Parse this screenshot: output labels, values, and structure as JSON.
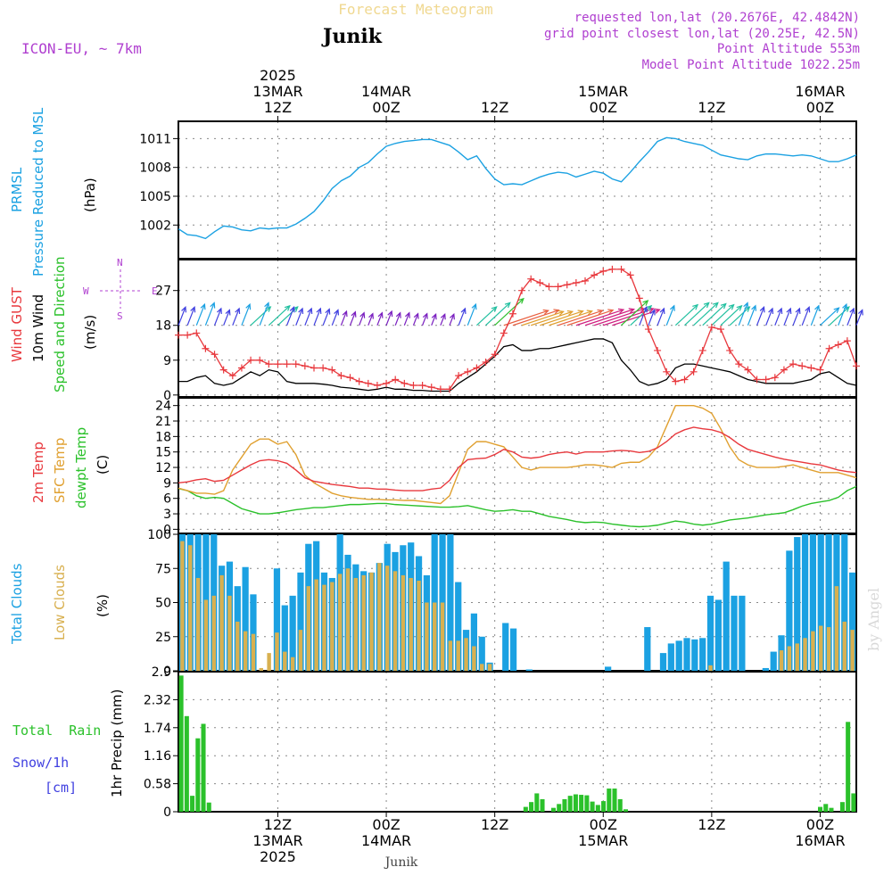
{
  "header": {
    "title": "Forecast Meteogram",
    "location": "Junik",
    "model": "ICON-EU, ~ 7km",
    "requested": "requested lon,lat (20.2676E, 42.4842N)",
    "gridpoint": "grid point closest lon,lat (20.25E, 42.5N)",
    "point_altitude": "Point Altitude 553m",
    "model_altitude": "Model Point Altitude 1022.25m",
    "footer_location": "Junik",
    "credit": "by Angel"
  },
  "colors": {
    "pressure": "#1ba1e2",
    "gust": "#e8383d",
    "wind": "#000000",
    "t2m": "#e8383d",
    "sfc": "#e0a030",
    "dewpt": "#2bc12b",
    "total_clouds": "#1ba1e2",
    "low_clouds": "#d8b050",
    "rain": "#2bc12b",
    "snow": "#4040e0",
    "purple": "#b040d0"
  },
  "time_axis": {
    "start_hour": 0,
    "end_hour": 75,
    "top_labels": [
      {
        "h": 11,
        "lines": [
          "2025",
          "13MAR",
          "12Z"
        ]
      },
      {
        "h": 23,
        "lines": [
          "14MAR",
          "00Z"
        ]
      },
      {
        "h": 35,
        "lines": [
          "12Z"
        ]
      },
      {
        "h": 47,
        "lines": [
          "15MAR",
          "00Z"
        ]
      },
      {
        "h": 59,
        "lines": [
          "12Z"
        ]
      },
      {
        "h": 71,
        "lines": [
          "16MAR",
          "00Z"
        ]
      }
    ],
    "bottom_labels": [
      {
        "h": 11,
        "lines": [
          "12Z",
          "13MAR",
          "2025"
        ]
      },
      {
        "h": 23,
        "lines": [
          "00Z",
          "14MAR"
        ]
      },
      {
        "h": 35,
        "lines": [
          "12Z"
        ]
      },
      {
        "h": 47,
        "lines": [
          "00Z",
          "15MAR"
        ]
      },
      {
        "h": 59,
        "lines": [
          "12Z"
        ]
      },
      {
        "h": 71,
        "lines": [
          "00Z",
          "16MAR"
        ]
      }
    ]
  },
  "chart_data": [
    {
      "type": "line",
      "title": "PRMSL Pressure Reduced to MSL",
      "ylabel": "(hPa)",
      "axis_title_lines": [
        "PRMSL",
        "Pressure Reduced to MSL"
      ],
      "ylim": [
        998.5,
        1012.8
      ],
      "yticks": [
        1002,
        1005,
        1008,
        1011
      ],
      "series": [
        {
          "name": "PRMSL",
          "values": [
            1001.6,
            1001.0,
            1000.9,
            1000.6,
            1001.3,
            1001.9,
            1001.8,
            1001.5,
            1001.4,
            1001.7,
            1001.6,
            1001.7,
            1001.7,
            1002.1,
            1002.7,
            1003.4,
            1004.5,
            1005.8,
            1006.6,
            1007.1,
            1008.0,
            1008.5,
            1009.4,
            1010.2,
            1010.5,
            1010.7,
            1010.8,
            1010.9,
            1010.9,
            1010.6,
            1010.3,
            1009.6,
            1008.8,
            1009.2,
            1007.9,
            1006.8,
            1006.2,
            1006.3,
            1006.2,
            1006.6,
            1007.0,
            1007.3,
            1007.5,
            1007.4,
            1007.0,
            1007.3,
            1007.6,
            1007.4,
            1006.8,
            1006.5,
            1007.5,
            1008.6,
            1009.6,
            1010.7,
            1011.1,
            1011.0,
            1010.7,
            1010.5,
            1010.3,
            1009.8,
            1009.3,
            1009.1,
            1008.9,
            1008.8,
            1009.2,
            1009.4,
            1009.4,
            1009.3,
            1009.2,
            1009.3,
            1009.2,
            1008.9,
            1008.6,
            1008.6,
            1008.9,
            1009.3
          ]
        }
      ]
    },
    {
      "type": "line",
      "title": "Wind GUST / 10m Wind Speed and Direction",
      "ylabel": "(m/s)",
      "axis_title_lines": [
        "Wind GUST",
        "10m Wind",
        "Speed and Direction"
      ],
      "compass": {
        "n": "N",
        "s": "S",
        "w": "W",
        "e": "E"
      },
      "ylim": [
        -0.5,
        35
      ],
      "yticks": [
        0,
        9,
        18,
        27
      ],
      "series": [
        {
          "name": "Wind GUST",
          "values": [
            15.5,
            15.5,
            16.0,
            12.0,
            10.5,
            6.5,
            5.0,
            7.0,
            9.0,
            9.0,
            8.0,
            8.0,
            8.0,
            8.0,
            7.5,
            7.0,
            7.0,
            6.5,
            5.0,
            4.5,
            3.5,
            3.0,
            2.5,
            3.0,
            4.0,
            3.0,
            2.5,
            2.5,
            2.0,
            1.5,
            1.5,
            5.0,
            6.0,
            7.0,
            8.5,
            10.5,
            16.0,
            21.0,
            27.0,
            30.0,
            29.0,
            28.0,
            28.0,
            28.5,
            29.0,
            29.5,
            31.0,
            32.0,
            32.5,
            32.5,
            31.0,
            25.0,
            17.0,
            11.5,
            6.0,
            3.5,
            4.0,
            6.0,
            11.5,
            17.5,
            17.0,
            11.5,
            8.0,
            6.5,
            4.0,
            4.0,
            4.5,
            6.5,
            8.0,
            7.5,
            7.0,
            6.5,
            12.0,
            13.0,
            14.0,
            7.5
          ]
        },
        {
          "name": "10m Wind",
          "values": [
            3.5,
            3.5,
            4.5,
            5.0,
            3.0,
            2.5,
            3.0,
            4.5,
            6.0,
            5.0,
            6.5,
            6.0,
            3.5,
            3.0,
            3.0,
            3.0,
            2.8,
            2.5,
            2.0,
            1.8,
            1.5,
            1.2,
            1.5,
            2.0,
            1.5,
            1.5,
            1.2,
            1.2,
            1.0,
            1.0,
            1.0,
            3.0,
            4.5,
            6.0,
            8.0,
            10.0,
            12.5,
            13.0,
            11.5,
            11.5,
            12.0,
            12.0,
            12.5,
            13.0,
            13.5,
            14.0,
            14.5,
            14.5,
            13.5,
            9.0,
            6.5,
            3.5,
            2.5,
            3.0,
            4.0,
            7.0,
            8.0,
            8.0,
            7.5,
            7.0,
            6.5,
            6.0,
            5.0,
            4.0,
            3.5,
            3.0,
            3.0,
            3.0,
            3.0,
            3.5,
            4.0,
            5.5,
            6.0,
            4.5,
            3.0,
            2.5
          ]
        }
      ],
      "wind_barbs_note": "arrows along y=18, colored by speed"
    },
    {
      "type": "line",
      "title": "2m Temp / SFC Temp / dewpt Temp",
      "ylabel": "(C)",
      "axis_title_lines": [
        "2m Temp",
        "SFC Temp",
        "dewpt Temp"
      ],
      "ylim": [
        -0.8,
        25.5
      ],
      "yticks": [
        0,
        3,
        6,
        9,
        12,
        15,
        18,
        21,
        24
      ],
      "series": [
        {
          "name": "2m Temp",
          "values": [
            9.0,
            9.2,
            9.6,
            9.8,
            9.3,
            9.5,
            10.5,
            11.5,
            12.5,
            13.3,
            13.5,
            13.3,
            12.8,
            11.5,
            10.0,
            9.3,
            9.0,
            8.7,
            8.5,
            8.3,
            8.0,
            8.0,
            7.8,
            7.8,
            7.6,
            7.5,
            7.5,
            7.5,
            7.8,
            8.0,
            9.5,
            12.0,
            13.5,
            13.7,
            13.8,
            14.5,
            15.5,
            15.0,
            14.0,
            13.8,
            14.0,
            14.5,
            14.8,
            15.0,
            14.6,
            15.0,
            15.0,
            15.0,
            15.2,
            15.3,
            15.2,
            14.9,
            15.1,
            15.8,
            17.0,
            18.5,
            19.3,
            19.8,
            19.5,
            19.3,
            18.8,
            17.8,
            16.5,
            15.5,
            15.0,
            14.5,
            14.0,
            13.6,
            13.3,
            13.0,
            12.7,
            12.5,
            12.0,
            11.5,
            11.2,
            11.0
          ]
        },
        {
          "name": "SFC Temp",
          "values": [
            8.0,
            7.5,
            7.0,
            7.0,
            6.8,
            7.5,
            11.5,
            14.0,
            16.5,
            17.5,
            17.5,
            16.5,
            17.0,
            14.5,
            10.5,
            9.0,
            8.0,
            7.0,
            6.5,
            6.2,
            6.0,
            5.8,
            5.8,
            5.7,
            5.7,
            5.6,
            5.6,
            5.4,
            5.2,
            5.0,
            6.5,
            11.0,
            15.5,
            17.0,
            17.0,
            16.5,
            16.0,
            14.0,
            12.0,
            11.5,
            12.0,
            12.0,
            12.0,
            12.0,
            12.2,
            12.5,
            12.5,
            12.3,
            12.0,
            12.8,
            13.0,
            13.0,
            14.0,
            16.0,
            20.0,
            24.0,
            24.0,
            24.0,
            23.5,
            22.5,
            19.5,
            16.0,
            13.5,
            12.5,
            12.0,
            12.0,
            12.0,
            12.2,
            12.5,
            12.0,
            11.5,
            11.0,
            11.0,
            11.0,
            10.5,
            10.0
          ]
        },
        {
          "name": "dewpt Temp",
          "values": [
            7.9,
            7.5,
            6.5,
            6.0,
            6.2,
            6.0,
            5.0,
            4.0,
            3.5,
            3.0,
            3.0,
            3.2,
            3.5,
            3.8,
            4.0,
            4.2,
            4.2,
            4.4,
            4.6,
            4.8,
            4.8,
            4.9,
            5.0,
            5.0,
            4.8,
            4.7,
            4.6,
            4.5,
            4.4,
            4.3,
            4.3,
            4.4,
            4.6,
            4.2,
            3.8,
            3.5,
            3.6,
            3.8,
            3.5,
            3.5,
            3.0,
            2.5,
            2.2,
            1.9,
            1.5,
            1.3,
            1.4,
            1.3,
            1.0,
            0.8,
            0.6,
            0.5,
            0.6,
            0.8,
            1.2,
            1.6,
            1.4,
            1.0,
            0.8,
            1.0,
            1.4,
            1.8,
            2.0,
            2.2,
            2.5,
            2.8,
            3.0,
            3.2,
            3.8,
            4.5,
            5.0,
            5.3,
            5.6,
            6.2,
            7.5,
            8.3
          ]
        }
      ]
    },
    {
      "type": "bar",
      "title": "Total Clouds / Low Clouds",
      "ylabel": "(%)",
      "axis_title_lines": [
        "Total Clouds",
        "Low Clouds"
      ],
      "ylim": [
        0,
        100
      ],
      "yticks": [
        0,
        25,
        50,
        75,
        100
      ],
      "series": [
        {
          "name": "Total Clouds",
          "values": [
            100,
            100,
            100,
            100,
            100,
            77,
            80,
            62,
            76,
            56,
            0,
            0,
            75,
            48,
            55,
            72,
            93,
            95,
            72,
            68,
            100,
            85,
            78,
            73,
            72,
            79,
            93,
            87,
            92,
            94,
            84,
            70,
            100,
            100,
            100,
            65,
            30,
            42,
            25,
            6,
            0,
            35,
            31,
            0,
            1,
            0,
            0,
            0,
            0,
            0,
            0,
            0,
            0,
            0,
            3,
            0,
            0,
            0,
            0,
            32,
            0,
            13,
            20,
            22,
            24,
            23,
            24,
            55,
            52,
            80,
            55,
            55,
            0,
            0,
            2,
            14,
            26,
            88,
            98,
            100,
            100,
            100,
            100,
            100,
            100,
            72
          ]
        },
        {
          "name": "Low Clouds",
          "values": [
            95,
            92,
            68,
            52,
            55,
            70,
            55,
            36,
            29,
            27,
            2,
            13,
            28,
            14,
            10,
            30,
            62,
            67,
            63,
            65,
            71,
            75,
            68,
            70,
            72,
            79,
            77,
            73,
            70,
            68,
            66,
            50,
            50,
            50,
            22,
            22,
            24,
            18,
            5,
            5,
            0,
            0,
            0,
            0,
            0,
            0,
            0,
            0,
            0,
            0,
            0,
            0,
            0,
            0,
            0,
            0,
            0,
            0,
            0,
            0,
            0,
            0,
            0,
            0,
            0,
            0,
            0,
            4,
            0,
            0,
            0,
            0,
            0,
            0,
            0,
            0,
            15,
            18,
            20,
            24,
            29,
            33,
            32,
            62,
            36,
            30
          ]
        }
      ]
    },
    {
      "type": "bar",
      "title": "Total Rain / Snow/1h",
      "ylabel": "1hr Precip (mm)",
      "legend_lines": [
        "Total  Rain",
        "Snow/1h",
        "[cm]"
      ],
      "ylim": [
        0,
        2.9
      ],
      "yticks": [
        0,
        0.58,
        1.16,
        1.74,
        2.32,
        2.9
      ],
      "ytick_labels": [
        "0",
        "0.58",
        "1.16",
        "1.74",
        "2.32",
        "2.9"
      ],
      "series": [
        {
          "name": "Total Rain",
          "values": [
            2.82,
            1.98,
            0.33,
            1.52,
            1.82,
            0.19,
            0,
            0,
            0,
            0,
            0,
            0,
            0,
            0,
            0,
            0,
            0,
            0,
            0,
            0,
            0,
            0,
            0,
            0,
            0,
            0,
            0,
            0,
            0,
            0,
            0,
            0,
            0,
            0,
            0,
            0,
            0,
            0,
            0,
            0,
            0,
            0,
            0,
            0,
            0,
            0,
            0,
            0,
            0,
            0,
            0,
            0,
            0,
            0,
            0,
            0,
            0,
            0,
            0,
            0,
            0,
            0,
            0.1,
            0.2,
            0.38,
            0.26,
            0,
            0.08,
            0.16,
            0.26,
            0.33,
            0.36,
            0.35,
            0.34,
            0.21,
            0.14,
            0.22,
            0.48,
            0.48,
            0.26,
            0.05,
            0,
            0,
            0,
            0,
            0,
            0,
            0,
            0,
            0,
            0,
            0,
            0,
            0,
            0,
            0,
            0,
            0,
            0,
            0,
            0,
            0,
            0,
            0,
            0,
            0,
            0,
            0,
            0,
            0,
            0,
            0,
            0,
            0,
            0,
            0.1,
            0.16,
            0.08,
            0,
            0.2,
            1.86,
            0.38
          ]
        }
      ]
    }
  ]
}
